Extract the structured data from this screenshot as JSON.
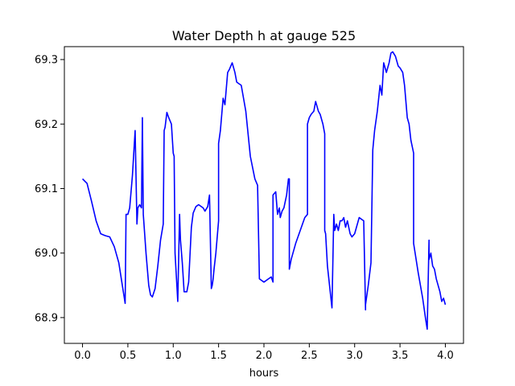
{
  "chart_data": {
    "type": "line",
    "title": "Water Depth h at gauge 525",
    "xlabel": "hours",
    "ylabel": "",
    "xlim": [
      -0.2,
      4.2
    ],
    "ylim": [
      68.86,
      69.32
    ],
    "xticks": [
      0.0,
      0.5,
      1.0,
      1.5,
      2.0,
      2.5,
      3.0,
      3.5,
      4.0
    ],
    "xtick_labels": [
      "0.0",
      "0.5",
      "1.0",
      "1.5",
      "2.0",
      "2.5",
      "3.0",
      "3.5",
      "4.0"
    ],
    "yticks": [
      68.9,
      69.0,
      69.1,
      69.2,
      69.3
    ],
    "ytick_labels": [
      "68.9",
      "69.0",
      "69.1",
      "69.2",
      "69.3"
    ],
    "grid": false,
    "legend": "none",
    "series": [
      {
        "color": "#0000ff",
        "x": [
          0.0,
          0.05,
          0.1,
          0.15,
          0.2,
          0.25,
          0.3,
          0.35,
          0.4,
          0.45,
          0.47,
          0.48,
          0.5,
          0.52,
          0.55,
          0.58,
          0.6,
          0.61,
          0.63,
          0.65,
          0.66,
          0.67,
          0.68,
          0.7,
          0.73,
          0.75,
          0.77,
          0.8,
          0.83,
          0.86,
          0.89,
          0.9,
          0.91,
          0.93,
          0.95,
          0.98,
          1.0,
          1.01,
          1.02,
          1.05,
          1.07,
          1.08,
          1.1,
          1.12,
          1.15,
          1.17,
          1.2,
          1.22,
          1.25,
          1.28,
          1.3,
          1.33,
          1.35,
          1.38,
          1.4,
          1.42,
          1.43,
          1.44,
          1.45,
          1.47,
          1.5,
          1.5,
          1.52,
          1.55,
          1.57,
          1.6,
          1.62,
          1.65,
          1.68,
          1.7,
          1.75,
          1.8,
          1.85,
          1.9,
          1.93,
          1.95,
          1.95,
          2.0,
          2.05,
          2.08,
          2.1,
          2.1,
          2.13,
          2.15,
          2.17,
          2.18,
          2.2,
          2.22,
          2.25,
          2.27,
          2.28,
          2.28,
          2.3,
          2.35,
          2.4,
          2.45,
          2.48,
          2.48,
          2.5,
          2.52,
          2.55,
          2.57,
          2.6,
          2.62,
          2.65,
          2.67,
          2.67,
          2.68,
          2.7,
          2.75,
          2.77,
          2.78,
          2.8,
          2.82,
          2.84,
          2.86,
          2.88,
          2.9,
          2.92,
          2.95,
          2.97,
          3.0,
          3.05,
          3.1,
          3.12,
          3.12,
          3.15,
          3.18,
          3.2,
          3.22,
          3.25,
          3.28,
          3.3,
          3.32,
          3.35,
          3.38,
          3.4,
          3.42,
          3.45,
          3.48,
          3.5,
          3.53,
          3.55,
          3.58,
          3.6,
          3.62,
          3.65,
          3.65,
          3.7,
          3.75,
          3.78,
          3.8,
          3.82,
          3.82,
          3.84,
          3.86,
          3.88,
          3.9,
          3.92,
          3.94,
          3.96,
          3.98,
          4.0
        ],
        "y": [
          69.115,
          69.108,
          69.08,
          69.05,
          69.03,
          69.027,
          69.025,
          69.01,
          68.985,
          68.94,
          68.922,
          69.06,
          69.06,
          69.07,
          69.12,
          69.19,
          69.045,
          69.07,
          69.075,
          69.07,
          69.21,
          69.06,
          69.04,
          69.0,
          68.95,
          68.935,
          68.932,
          68.945,
          68.98,
          69.02,
          69.045,
          69.19,
          69.195,
          69.218,
          69.21,
          69.2,
          69.155,
          69.15,
          69.0,
          68.925,
          69.06,
          69.02,
          68.985,
          68.94,
          68.94,
          68.955,
          69.04,
          69.062,
          69.072,
          69.075,
          69.073,
          69.07,
          69.065,
          69.072,
          69.09,
          68.945,
          68.95,
          68.96,
          68.975,
          69.0,
          69.05,
          69.17,
          69.19,
          69.24,
          69.23,
          69.28,
          69.285,
          69.295,
          69.28,
          69.265,
          69.26,
          69.22,
          69.15,
          69.115,
          69.105,
          68.96,
          68.96,
          68.955,
          68.96,
          68.963,
          68.955,
          69.09,
          69.095,
          69.06,
          69.07,
          69.055,
          69.065,
          69.07,
          69.09,
          69.115,
          69.115,
          68.975,
          68.99,
          69.015,
          69.035,
          69.055,
          69.06,
          69.2,
          69.21,
          69.215,
          69.22,
          69.235,
          69.22,
          69.215,
          69.2,
          69.185,
          69.035,
          69.03,
          68.98,
          68.915,
          69.06,
          69.035,
          69.045,
          69.035,
          69.05,
          69.05,
          69.055,
          69.04,
          69.05,
          69.03,
          69.025,
          69.03,
          69.055,
          69.05,
          68.912,
          68.92,
          68.95,
          68.985,
          69.16,
          69.19,
          69.22,
          69.26,
          69.245,
          69.295,
          69.28,
          69.295,
          69.31,
          69.312,
          69.305,
          69.29,
          69.287,
          69.28,
          69.26,
          69.21,
          69.2,
          69.175,
          69.155,
          69.015,
          68.97,
          68.93,
          68.9,
          68.882,
          69.02,
          68.99,
          69.0,
          68.98,
          68.975,
          68.96,
          68.95,
          68.94,
          68.925,
          68.93,
          68.92
        ]
      }
    ]
  }
}
